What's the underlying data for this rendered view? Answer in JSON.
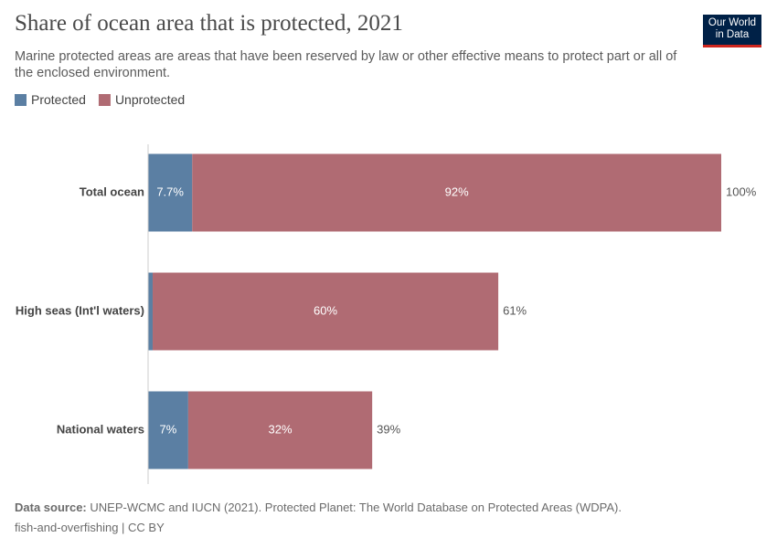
{
  "chart_data": {
    "type": "stacked-bar-horizontal",
    "title": "Share of ocean area that is protected, 2021",
    "subtitle": "Marine protected areas are areas that have been reserved by law or other effective means to protect part or all of the enclosed environment.",
    "logo": [
      "Our World",
      "in Data"
    ],
    "categories": [
      "Total ocean",
      "High seas (Int'l waters)",
      "National waters"
    ],
    "series": [
      {
        "name": "Protected",
        "color": "#5b7fa3",
        "values": [
          7.7,
          0.8,
          7
        ],
        "value_labels": [
          "7.7%",
          null,
          "7%"
        ]
      },
      {
        "name": "Unprotected",
        "color": "#b06b73",
        "values": [
          92.3,
          60.3,
          32.1
        ],
        "value_labels": [
          "92%",
          "60%",
          "32%"
        ]
      }
    ],
    "total_labels": [
      "100%",
      "61%",
      "39%"
    ],
    "xlim": [
      0,
      100
    ],
    "source_label": "Data source:",
    "source": "UNEP-WCMC and IUCN (2021). Protected Planet: The World Database on Protected Areas (WDPA).",
    "footer": "fish-and-overfishing | CC BY"
  }
}
